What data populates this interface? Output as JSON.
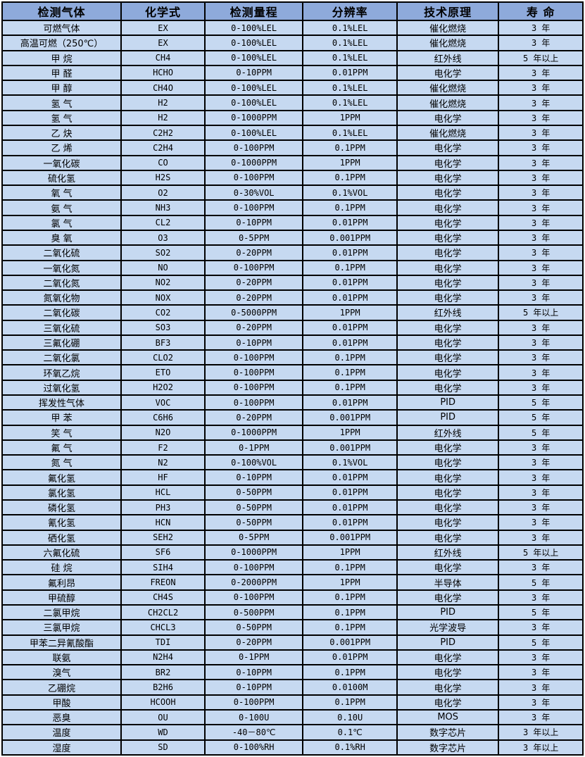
{
  "colors": {
    "header_bg": "#8eaadb",
    "row_bg": "#c6d9f1",
    "border": "#000000",
    "text": "#000000"
  },
  "table": {
    "headers": [
      "检测气体",
      "化学式",
      "检测量程",
      "分辨率",
      "技术原理",
      "寿 命"
    ],
    "rows": [
      [
        "可燃气体",
        "EX",
        "0-100%LEL",
        "0.1%LEL",
        "催化燃烧",
        "3 年"
      ],
      [
        "高温可燃（250℃）",
        "EX",
        "0-100%LEL",
        "0.1%LEL",
        "催化燃烧",
        "3 年"
      ],
      [
        "甲 烷",
        "CH4",
        "0-100%LEL",
        "0.1%LEL",
        "红外线",
        "5 年以上"
      ],
      [
        "甲 醛",
        "HCHO",
        "0-10PPM",
        "0.01PPM",
        "电化学",
        "3 年"
      ],
      [
        "甲 醇",
        "CH4O",
        "0-100%LEL",
        "0.1%LEL",
        "催化燃烧",
        "3 年"
      ],
      [
        "氢 气",
        "H2",
        "0-100%LEL",
        "0.1%LEL",
        "催化燃烧",
        "3 年"
      ],
      [
        "氢 气",
        "H2",
        "0-1000PPM",
        "1PPM",
        "电化学",
        "3 年"
      ],
      [
        "乙 炔",
        "C2H2",
        "0-100%LEL",
        "0.1%LEL",
        "催化燃烧",
        "3 年"
      ],
      [
        "乙 烯",
        "C2H4",
        "0-100PPM",
        "0.1PPM",
        "电化学",
        "3 年"
      ],
      [
        "一氧化碳",
        "CO",
        "0-1000PPM",
        "1PPM",
        "电化学",
        "3 年"
      ],
      [
        "硫化氢",
        "H2S",
        "0-100PPM",
        "0.1PPM",
        "电化学",
        "3 年"
      ],
      [
        "氧 气",
        "O2",
        "0-30%VOL",
        "0.1%VOL",
        "电化学",
        "3 年"
      ],
      [
        "氨 气",
        "NH3",
        "0-100PPM",
        "0.1PPM",
        "电化学",
        "3 年"
      ],
      [
        "氯 气",
        "CL2",
        "0-10PPM",
        "0.01PPM",
        "电化学",
        "3 年"
      ],
      [
        "臭 氧",
        "O3",
        "0-5PPM",
        "0.001PPM",
        "电化学",
        "3 年"
      ],
      [
        "二氧化硫",
        "SO2",
        "0-20PPM",
        "0.01PPM",
        "电化学",
        "3 年"
      ],
      [
        "一氧化氮",
        "NO",
        "0-100PPM",
        "0.1PPM",
        "电化学",
        "3 年"
      ],
      [
        "二氧化氮",
        "NO2",
        "0-20PPM",
        "0.01PPM",
        "电化学",
        "3 年"
      ],
      [
        "氮氧化物",
        "NOX",
        "0-20PPM",
        "0.01PPM",
        "电化学",
        "3 年"
      ],
      [
        "二氧化碳",
        "CO2",
        "0-5000PPM",
        "1PPM",
        "红外线",
        "5 年以上"
      ],
      [
        "三氧化硫",
        "SO3",
        "0-20PPM",
        "0.01PPM",
        "电化学",
        "3 年"
      ],
      [
        "三氟化硼",
        "BF3",
        "0-10PPM",
        "0.01PPM",
        "电化学",
        "3 年"
      ],
      [
        "二氧化氯",
        "CLO2",
        "0-100PPM",
        "0.1PPM",
        "电化学",
        "3 年"
      ],
      [
        "环氧乙烷",
        "ETO",
        "0-100PPM",
        "0.1PPM",
        "电化学",
        "3 年"
      ],
      [
        "过氧化氢",
        "H2O2",
        "0-100PPM",
        "0.1PPM",
        "电化学",
        "3 年"
      ],
      [
        "挥发性气体",
        "VOC",
        "0-100PPM",
        "0.01PPM",
        "PID",
        "5 年"
      ],
      [
        "甲 苯",
        "C6H6",
        "0-20PPM",
        "0.001PPM",
        "PID",
        "5 年"
      ],
      [
        "笑 气",
        "N2O",
        "0-1000PPM",
        "1PPM",
        "红外线",
        "5 年"
      ],
      [
        "氟 气",
        "F2",
        "0-1PPM",
        "0.001PPM",
        "电化学",
        "3 年"
      ],
      [
        "氮 气",
        "N2",
        "0-100%VOL",
        "0.1%VOL",
        "电化学",
        "3 年"
      ],
      [
        "氟化氢",
        "HF",
        "0-10PPM",
        "0.01PPM",
        "电化学",
        "3 年"
      ],
      [
        "氯化氢",
        "HCL",
        "0-50PPM",
        "0.01PPM",
        "电化学",
        "3 年"
      ],
      [
        "磷化氢",
        "PH3",
        "0-50PPM",
        "0.01PPM",
        "电化学",
        "3 年"
      ],
      [
        "氰化氢",
        "HCN",
        "0-50PPM",
        "0.01PPM",
        "电化学",
        "3 年"
      ],
      [
        "硒化氢",
        "SEH2",
        "0-5PPM",
        "0.001PPM",
        "电化学",
        "3 年"
      ],
      [
        "六氟化硫",
        "SF6",
        "0-1000PPM",
        "1PPM",
        "红外线",
        "5 年以上"
      ],
      [
        "硅 烷",
        "SIH4",
        "0-100PPM",
        "0.1PPM",
        "电化学",
        "3 年"
      ],
      [
        "氟利昂",
        "FREON",
        "0-2000PPM",
        "1PPM",
        "半导体",
        "5 年"
      ],
      [
        "甲硫醇",
        "CH4S",
        "0-100PPM",
        "0.1PPM",
        "电化学",
        "3 年"
      ],
      [
        "二氯甲烷",
        "CH2CL2",
        "0-500PPM",
        "0.1PPM",
        "PID",
        "5 年"
      ],
      [
        "三氯甲烷",
        "CHCL3",
        "0-50PPM",
        "0.1PPM",
        "光学波导",
        "3 年"
      ],
      [
        "甲苯二异氰酸酯",
        "TDI",
        "0-20PPM",
        "0.001PPM",
        "PID",
        "5 年"
      ],
      [
        "联氨",
        "N2H4",
        "0-1PPM",
        "0.01PPM",
        "电化学",
        "3 年"
      ],
      [
        "溴气",
        "BR2",
        "0-10PPM",
        "0.1PPM",
        "电化学",
        "3 年"
      ],
      [
        "乙硼烷",
        "B2H6",
        "0-10PPM",
        "0.0100M",
        "电化学",
        "3 年"
      ],
      [
        "甲酸",
        "HCOOH",
        "0-100PPM",
        "0.1PPM",
        "电化学",
        "3 年"
      ],
      [
        "恶臭",
        "OU",
        "0-100U",
        "0.10U",
        "MOS",
        "3 年"
      ],
      [
        "温度",
        "WD",
        "-40－80℃",
        "0.1℃",
        "数字芯片",
        "3 年以上"
      ],
      [
        "湿度",
        "SD",
        "0-100%RH",
        "0.1%RH",
        "数字芯片",
        "3 年以上"
      ]
    ]
  }
}
